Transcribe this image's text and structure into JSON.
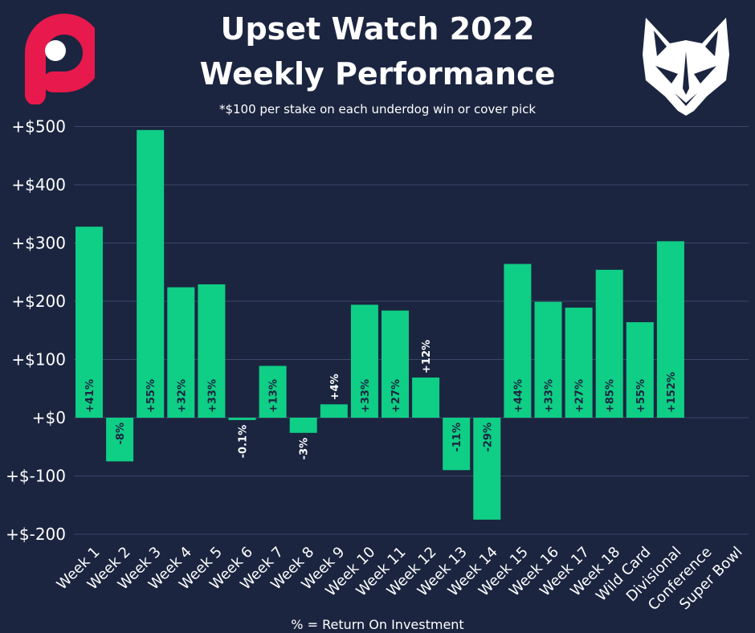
{
  "header": {
    "title_line1": "Upset Watch 2022",
    "title_line2": "Weekly Performance",
    "subtitle": "*$100 per stake on each underdog win or cover pick",
    "footnote": "% = Return On Investment"
  },
  "colors": {
    "background": "#1b2540",
    "bar": "#0fce85",
    "grid": "#3a4868",
    "logo_left": "#e8194c",
    "logo_right": "#ffffff"
  },
  "logos": {
    "left": "p-logo-icon",
    "right": "wolf-logo-icon"
  },
  "chart_data": {
    "type": "bar",
    "categories": [
      "Week 1",
      "Week 2",
      "Week 3",
      "Week 4",
      "Week 5",
      "Week 6",
      "Week 7",
      "Week 8",
      "Week 9",
      "Week 10",
      "Week 11",
      "Week 12",
      "Week 13",
      "Week 14",
      "Week 15",
      "Week 16",
      "Week 17",
      "Week 18",
      "Wild Card",
      "Divisional",
      "Conference",
      "Super Bowl"
    ],
    "values": [
      328,
      -75,
      494,
      224,
      229,
      -4,
      89,
      -26,
      23,
      194,
      184,
      69,
      -90,
      -175,
      264,
      199,
      189,
      254,
      164,
      303,
      null,
      null
    ],
    "data_labels": [
      "+41%",
      "-8%",
      "+55%",
      "+32%",
      "+33%",
      "-0.1%",
      "+13%",
      "-3%",
      "+4%",
      "+33%",
      "+27%",
      "+12%",
      "-11%",
      "-29%",
      "+44%",
      "+33%",
      "+27%",
      "+85%",
      "+55%",
      "+152%",
      "",
      ""
    ],
    "y_ticks": [
      500,
      400,
      300,
      200,
      100,
      0,
      -100,
      -200
    ],
    "y_tick_labels": [
      "+$500",
      "+$400",
      "+$300",
      "+$200",
      "+$100",
      "+$0",
      "+$-100",
      "+$-200"
    ],
    "ylim": [
      -200,
      500
    ],
    "grid": true,
    "legend": "none"
  }
}
